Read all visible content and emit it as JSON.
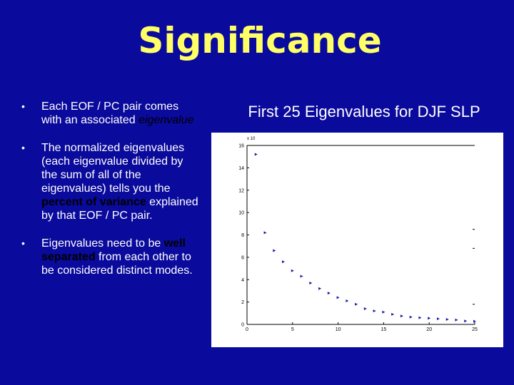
{
  "slide": {
    "title": "Significance",
    "bullet_symbol": "•"
  },
  "bullets": [
    {
      "parts": [
        {
          "text": "Each EOF / PC pair comes with an associated ",
          "style": "plain"
        },
        {
          "text": "eigenvalue",
          "style": "italic"
        }
      ]
    },
    {
      "parts": [
        {
          "text": " The normalized eigenvalues (each eigenvalue divided by the sum of all of the eigenvalues) tells you the ",
          "style": "plain"
        },
        {
          "text": "percent of variance",
          "style": "bold"
        },
        {
          "text": " explained by that EOF / PC pair.",
          "style": "plain"
        }
      ]
    },
    {
      "parts": [
        {
          "text": " Eigenvalues need to be ",
          "style": "plain"
        },
        {
          "text": "well separated",
          "style": "bold"
        },
        {
          "text": " from each other to be considered distinct modes.",
          "style": "plain"
        }
      ]
    }
  ],
  "chart_title": "First 25 Eigenvalues for DJF SLP",
  "colors": {
    "background": "#0a0a9c",
    "title": "#ffff66",
    "text": "#ffffff",
    "highlight": "#000000",
    "markers": "#1a1aa0"
  },
  "chart_data": {
    "type": "scatter",
    "title": "",
    "xlabel": "",
    "ylabel": "",
    "xlim": [
      0,
      25
    ],
    "ylim": [
      0,
      16
    ],
    "x_ticks": [
      "0",
      "5",
      "10",
      "15",
      "20",
      "25"
    ],
    "y_ticks": [
      "0",
      "2",
      "4",
      "6",
      "8",
      "10",
      "12",
      "14",
      "16"
    ],
    "y_exponent_label": "x 10",
    "grid": false,
    "series": [
      {
        "x": [
          1,
          2,
          3,
          4,
          5,
          6,
          7,
          8,
          9,
          10,
          11,
          12,
          13,
          14,
          15,
          16,
          17,
          18,
          19,
          20,
          21,
          22,
          23,
          24,
          25
        ],
        "values": [
          15.2,
          8.2,
          6.6,
          5.6,
          4.8,
          4.3,
          3.7,
          3.2,
          2.8,
          2.4,
          2.1,
          1.8,
          1.4,
          1.2,
          1.1,
          0.9,
          0.75,
          0.65,
          0.6,
          0.55,
          0.5,
          0.45,
          0.4,
          0.3,
          0.28
        ]
      }
    ]
  }
}
